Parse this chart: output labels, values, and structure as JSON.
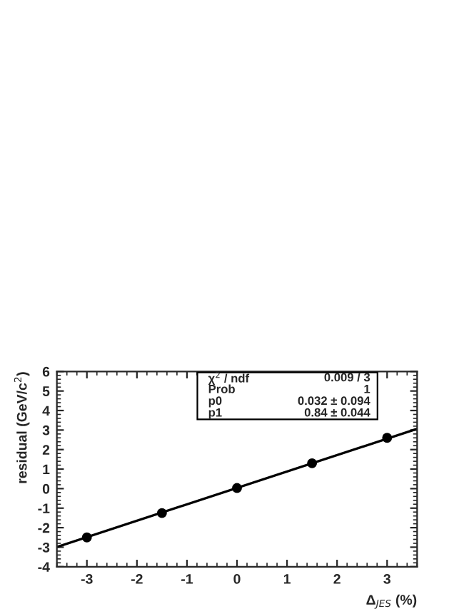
{
  "chart_data": {
    "type": "scatter",
    "xlabel": "Δ$_{JES}$ (%)",
    "ylabel": "residual (GeV/c$^{2}$)",
    "x": [
      -3,
      -1.5,
      0,
      1.5,
      3
    ],
    "series": [
      {
        "color": "#000000",
        "values": [
          -2.5,
          -1.25,
          0.03,
          1.3,
          2.6
        ],
        "marker": "circle"
      },
      {
        "type": "line",
        "color": "#000000",
        "x": [
          -3.6,
          3.6
        ],
        "values": [
          -2.99,
          3.06
        ],
        "line_style": "solid"
      }
    ],
    "xlim": [
      -3.6,
      3.6
    ],
    "ylim": [
      -4,
      6
    ],
    "xticks": [
      -3,
      -2,
      -1,
      0,
      1,
      2,
      3
    ],
    "yticks": [
      -4,
      -3,
      -2,
      -1,
      0,
      1,
      2,
      3,
      4,
      5,
      6
    ],
    "annotations": [
      "χ$^{2}$ / ndf",
      "0.009 / 3",
      "Prob",
      "1",
      "p0",
      "0.032 ± 0.094",
      "p1",
      "0.84 ± 0.044"
    ],
    "grid": false,
    "legend": false
  }
}
